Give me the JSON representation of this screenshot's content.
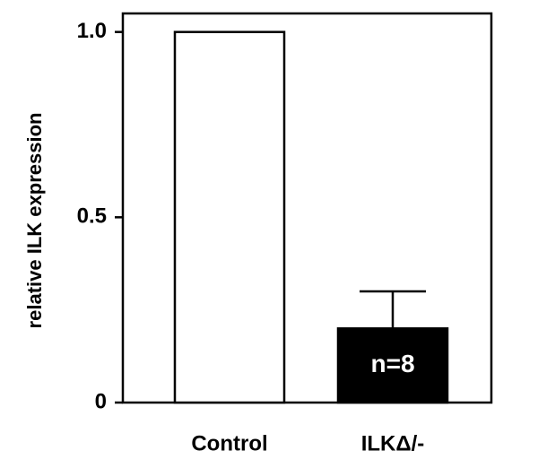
{
  "chart_data": {
    "type": "bar",
    "ylabel": "relative ILK expression",
    "categories": [
      "Control",
      "ILKΔ/-"
    ],
    "values": [
      1,
      0.2
    ],
    "errors": [
      null,
      0.1
    ],
    "colors": [
      "#ffffff",
      "#000000"
    ],
    "annotation": "n=8",
    "ylim": [
      0,
      1.05
    ],
    "yticks": [
      0,
      0.5,
      {
        "value": 1,
        "label": "1.0"
      }
    ],
    "grid": false
  }
}
